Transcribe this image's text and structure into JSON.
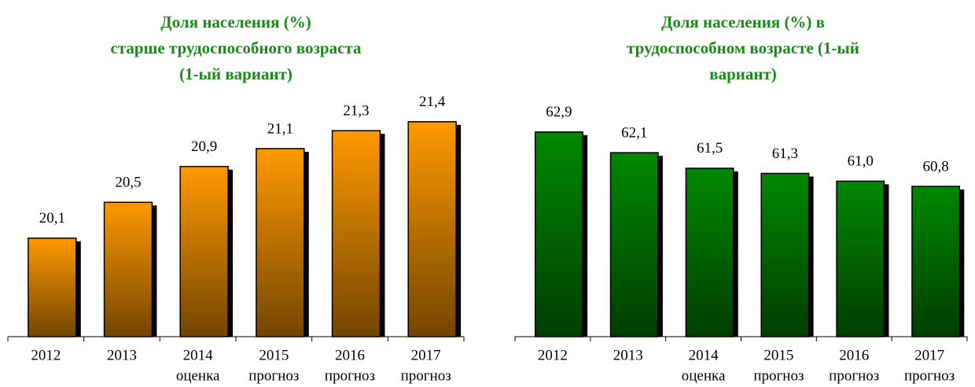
{
  "chart_data": [
    {
      "type": "bar",
      "title": [
        "Доля населения (%)",
        "старше трудоспособного возраста",
        "(1-ый вариант)"
      ],
      "categories": [
        "2012",
        "2013",
        "2014",
        "2015",
        "2016",
        "2017"
      ],
      "category_sublabels": [
        null,
        null,
        "оценка",
        "прогноз",
        "прогноз",
        "прогноз"
      ],
      "values": [
        20.1,
        20.5,
        20.9,
        21.1,
        21.3,
        21.4
      ],
      "value_labels": [
        "20,1",
        "20,5",
        "20,9",
        "21,1",
        "21,3",
        "21,4"
      ],
      "color": "#ff9900",
      "ylim": [
        19,
        21.6
      ]
    },
    {
      "type": "bar",
      "title": [
        "Доля населения (%) в",
        "трудоспособном возрасте (1-ый",
        "вариант)"
      ],
      "categories": [
        "2012",
        "2013",
        "2014",
        "2015",
        "2016",
        "2017"
      ],
      "category_sublabels": [
        null,
        null,
        "оценка",
        "прогноз",
        "прогноз",
        "прогноз"
      ],
      "values": [
        62.9,
        62.1,
        61.5,
        61.3,
        61.0,
        60.8
      ],
      "value_labels": [
        "62,9",
        "62,1",
        "61,5",
        "61,3",
        "61,0",
        "60,8"
      ],
      "color": "#008800",
      "ylim": [
        55,
        63.5
      ]
    }
  ]
}
